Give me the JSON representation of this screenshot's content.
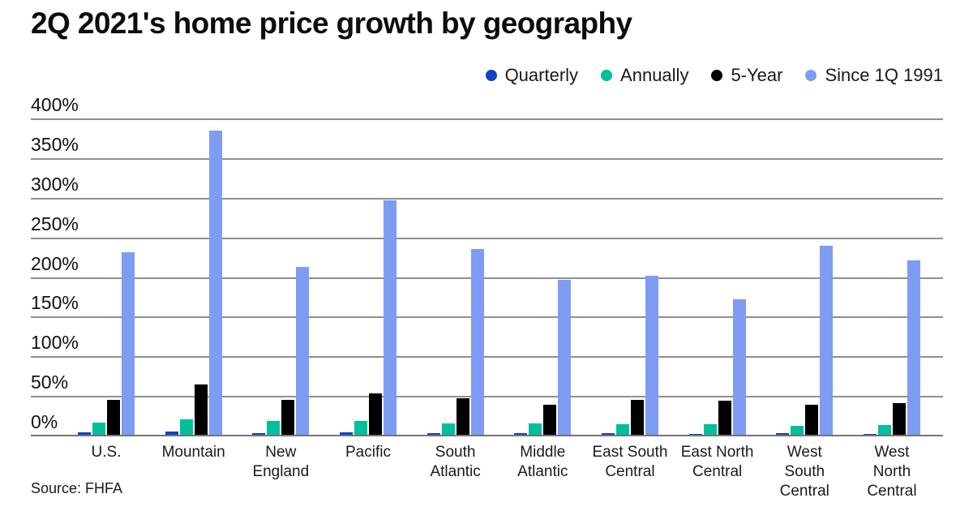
{
  "header": {
    "title": "2Q 2021's home price growth by geography"
  },
  "source": {
    "label": "Source: FHFA"
  },
  "colors": {
    "quarterly": "#1341c4",
    "annually": "#00bf9c",
    "five_year": "#000000",
    "since_1991": "#7d9cf2",
    "gridline": "#8f8f8f",
    "text": "#1a1a1a"
  },
  "chart_data": {
    "type": "bar",
    "title": "2Q 2021's home price growth by geography",
    "xlabel": "",
    "ylabel": "",
    "ylim": [
      0,
      400
    ],
    "ytick_step": 50,
    "ytick_suffix": "%",
    "grid": true,
    "legend_position": "top-right",
    "source": "Source: FHFA",
    "categories": [
      "U.S.",
      "Mountain",
      "New England",
      "Pacific",
      "South Atlantic",
      "Middle Atlantic",
      "East South Central",
      "East North Central",
      "West South Central",
      "West North Central"
    ],
    "category_label_lines": [
      [
        "U.S."
      ],
      [
        "Mountain"
      ],
      [
        "New",
        "England"
      ],
      [
        "Pacific"
      ],
      [
        "South",
        "Atlantic"
      ],
      [
        "Middle",
        "Atlantic"
      ],
      [
        "East South",
        "Central"
      ],
      [
        "East North",
        "Central"
      ],
      [
        "West",
        "South",
        "Central"
      ],
      [
        "West",
        "North",
        "Central"
      ]
    ],
    "series": [
      {
        "name": "Quarterly",
        "color": "#1341c4",
        "values": [
          5,
          6.5,
          4.5,
          5,
          4.5,
          4.5,
          4.5,
          3.5,
          4,
          3.5
        ]
      },
      {
        "name": "Annually",
        "color": "#00bf9c",
        "values": [
          17,
          22,
          19,
          19.5,
          16.5,
          16.5,
          15.5,
          15.5,
          13.5,
          14.5
        ]
      },
      {
        "name": "5-Year",
        "color": "#000000",
        "values": [
          46,
          66,
          46,
          54,
          48,
          40,
          46,
          45,
          40,
          42
        ]
      },
      {
        "name": "Since 1Q 1991",
        "color": "#7d9cf2",
        "values": [
          232,
          386,
          214,
          298,
          236,
          197,
          203,
          173,
          240,
          222
        ]
      }
    ]
  }
}
